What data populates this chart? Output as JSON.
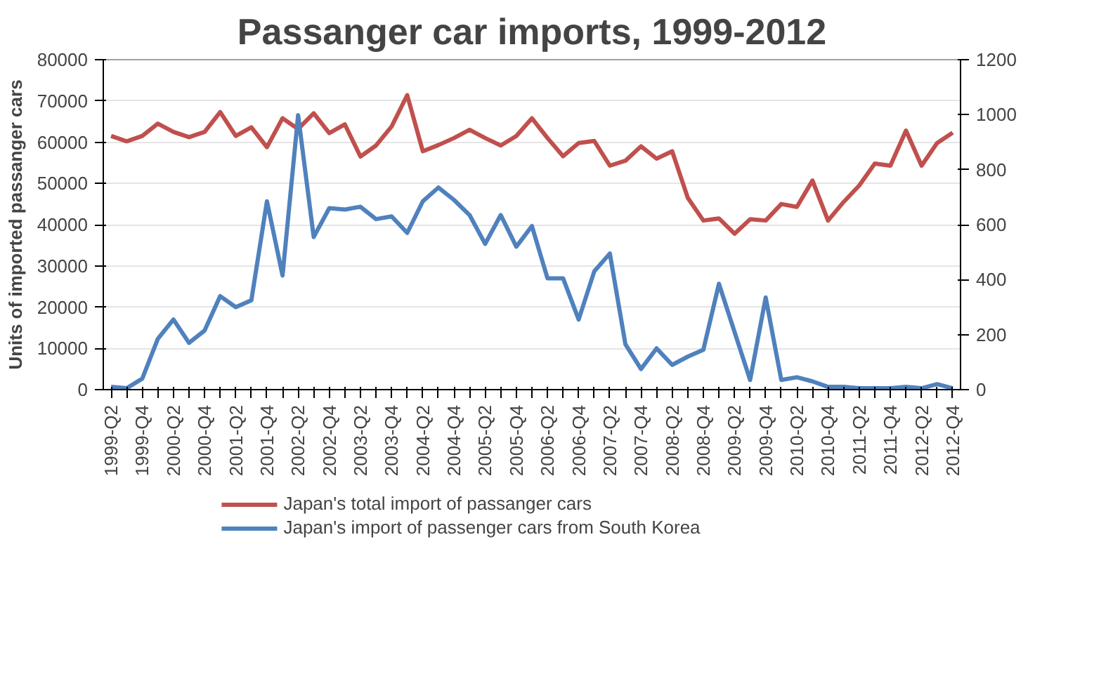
{
  "chart_data": {
    "type": "line",
    "title": "Passanger car imports, 1999-2012",
    "ylabel": "Units of imported passanger cars",
    "categories": [
      "1999-Q2",
      null,
      "1999-Q4",
      null,
      "2000-Q2",
      null,
      "2000-Q4",
      null,
      "2001-Q2",
      null,
      "2001-Q4",
      null,
      "2002-Q2",
      null,
      "2002-Q4",
      null,
      "2003-Q2",
      null,
      "2003-Q4",
      null,
      "2004-Q2",
      null,
      "2004-Q4",
      null,
      "2005-Q2",
      null,
      "2005-Q4",
      null,
      "2006-Q2",
      null,
      "2006-Q4",
      null,
      "2007-Q2",
      null,
      "2007-Q4",
      null,
      "2008-Q2",
      null,
      "2008-Q4",
      null,
      "2009-Q2",
      null,
      "2009-Q4",
      null,
      "2010-Q2",
      null,
      "2010-Q4",
      null,
      "2011-Q2",
      null,
      "2011-Q4",
      null,
      "2012-Q2",
      null,
      "2012-Q4"
    ],
    "series": [
      {
        "name": "Japan's total import of passanger cars",
        "color": "#c0504d",
        "values": [
          61500,
          60200,
          61500,
          64500,
          62500,
          61200,
          62500,
          67300,
          61500,
          63600,
          58800,
          65800,
          63200,
          67000,
          62200,
          64300,
          56500,
          59200,
          63800,
          71400,
          57800,
          59300,
          61000,
          63000,
          61000,
          59200,
          61500,
          65800,
          61000,
          56600,
          59800,
          60300,
          54300,
          55500,
          59000,
          56000,
          57800,
          46500,
          41000,
          41500,
          37800,
          41300,
          41000,
          45000,
          44300,
          50700,
          41000,
          45500,
          49500,
          54800,
          54300,
          62800,
          54300,
          59800,
          62300
        ]
      },
      {
        "name": "Japan's import of passenger cars from South Korea",
        "color": "#4f81bd",
        "axis": "y2",
        "values": [
          10,
          5,
          40,
          185,
          255,
          170,
          215,
          340,
          300,
          325,
          685,
          415,
          998,
          555,
          660,
          655,
          665,
          620,
          630,
          570,
          685,
          735,
          690,
          635,
          530,
          635,
          520,
          595,
          405,
          405,
          255,
          430,
          495,
          165,
          75,
          150,
          90,
          120,
          145,
          385,
          210,
          35,
          335,
          35,
          45,
          30,
          10,
          10,
          5,
          5,
          5,
          10,
          5,
          20,
          5
        ]
      }
    ],
    "ylim": [
      0,
      80000
    ],
    "yticks": [
      0,
      10000,
      20000,
      30000,
      40000,
      50000,
      60000,
      70000,
      80000
    ],
    "y2lim": [
      0,
      1200
    ],
    "y2ticks": [
      0,
      200,
      400,
      600,
      800,
      1000,
      1200
    ],
    "grid": "y",
    "legend": "bottom",
    "marker": "none",
    "line_style": "solid"
  }
}
